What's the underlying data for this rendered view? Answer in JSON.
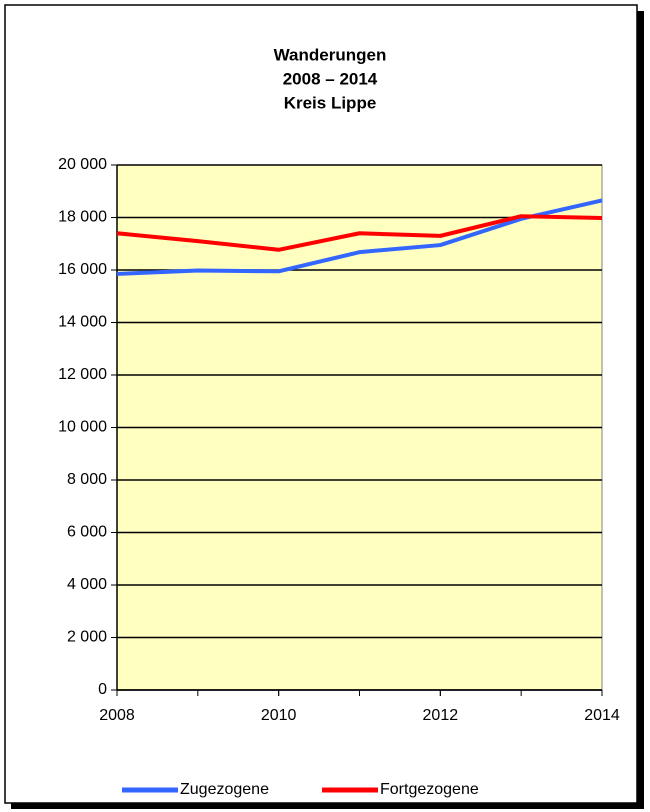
{
  "chart_data": {
    "type": "line",
    "title": [
      "Wanderungen",
      "2008 – 2014",
      "Kreis Lippe"
    ],
    "x": [
      2008,
      2009,
      2010,
      2011,
      2012,
      2013,
      2014
    ],
    "series": [
      {
        "name": "Zugezogene",
        "color": "#3366ff",
        "values": [
          15850,
          15980,
          15950,
          16680,
          16950,
          17950,
          18650
        ]
      },
      {
        "name": "Fortgezogene",
        "color": "#ff0000",
        "values": [
          17400,
          17100,
          16770,
          17400,
          17300,
          18050,
          17980
        ]
      }
    ],
    "xlim": [
      2008,
      2014
    ],
    "xticks": [
      2008,
      2010,
      2012,
      2014
    ],
    "ylim": [
      0,
      20000
    ],
    "yticks": [
      0,
      {
        "value": 2000,
        "label": "2 000"
      },
      {
        "value": 4000,
        "label": "4 000"
      },
      {
        "value": 6000,
        "label": "6 000"
      },
      {
        "value": 8000,
        "label": "8 000"
      },
      {
        "value": 10000,
        "label": "10 000"
      },
      {
        "value": 12000,
        "label": "12 000"
      },
      {
        "value": 14000,
        "label": "14 000"
      },
      {
        "value": 16000,
        "label": "16 000"
      },
      {
        "value": 18000,
        "label": "18 000"
      },
      {
        "value": 20000,
        "label": "20 000"
      }
    ],
    "grid": true,
    "plot_background": "#ffffc0",
    "legend": "bottom"
  }
}
